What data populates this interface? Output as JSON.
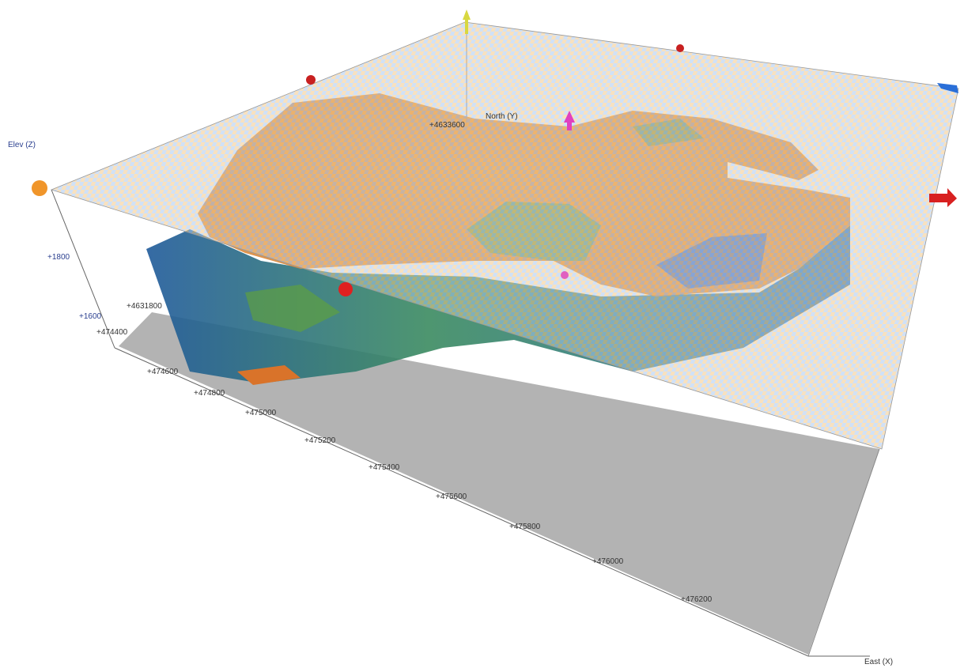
{
  "axes": {
    "elev": {
      "label": "Elev (Z)",
      "ticks": [
        "+1800",
        "+1600"
      ]
    },
    "north": {
      "label": "North (Y)",
      "ticks": [
        "+4633600",
        "+4631800"
      ]
    },
    "east": {
      "label": "East (X)",
      "ticks": [
        "+474400",
        "+474600",
        "+474800",
        "+475000",
        "+475200",
        "+475400",
        "+475600",
        "+475800",
        "+476000",
        "+476200"
      ]
    }
  }
}
